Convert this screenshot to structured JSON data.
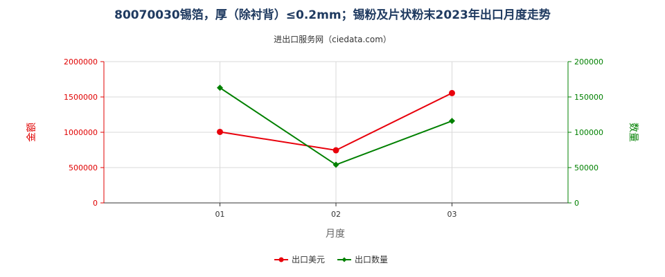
{
  "chart_data": {
    "type": "line",
    "title": "80070030锡箔，厚（除衬背）≤0.2mm；锡粉及片状粉末2023年出口月度走势",
    "subtitle": "进出口服务网（ciedata.com）",
    "xlabel": "月度",
    "ylabel_left": "金额",
    "ylabel_right": "数量",
    "categories": [
      "01",
      "02",
      "03"
    ],
    "ylim_left": [
      0,
      2000000
    ],
    "ylim_right": [
      0,
      200000
    ],
    "yticks_left": [
      "0",
      "500000",
      "1000000",
      "1500000",
      "2000000"
    ],
    "yticks_right": [
      "0",
      "50000",
      "100000",
      "150000",
      "200000"
    ],
    "grid": true,
    "legend_position": "bottom-center",
    "series": [
      {
        "name": "出口美元",
        "axis": "left",
        "color": "#e8000b",
        "marker": "circle",
        "values": [
          1005000,
          745000,
          1555000
        ]
      },
      {
        "name": "出口数量",
        "axis": "right",
        "color": "#008000",
        "marker": "diamond",
        "values": [
          163000,
          54000,
          116000
        ]
      }
    ]
  }
}
